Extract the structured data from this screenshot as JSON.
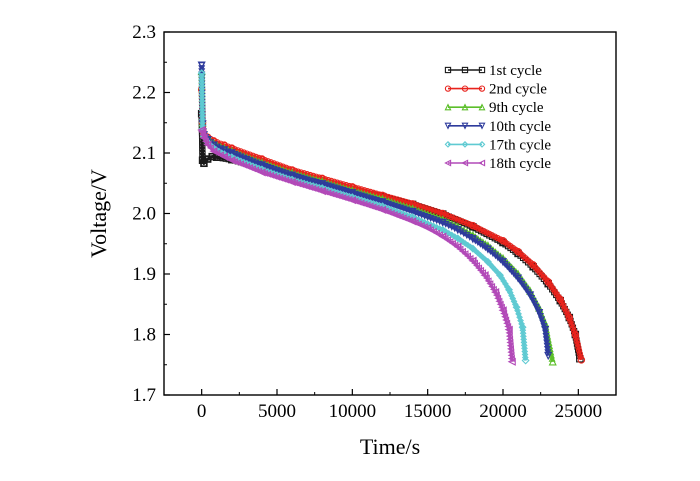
{
  "chart_data": {
    "type": "line",
    "xlabel": "Time/s",
    "ylabel": "Voltage/V",
    "xlim": [
      -2500,
      27500
    ],
    "ylim": [
      1.7,
      2.3
    ],
    "xticks": [
      0,
      5000,
      10000,
      15000,
      20000,
      25000
    ],
    "yticks": [
      1.7,
      1.8,
      1.9,
      2.0,
      2.1,
      2.2,
      2.3
    ],
    "xtick_labels": [
      "0",
      "5000",
      "10000",
      "15000",
      "20000",
      "25000"
    ],
    "ytick_labels": [
      "1.7",
      "1.8",
      "1.9",
      "2.0",
      "2.1",
      "2.2",
      "2.3"
    ],
    "legend_position": "top-right",
    "grid": false,
    "series": [
      {
        "name": "1st cycle",
        "color": "#1a1a1a",
        "marker": "square",
        "x": [
          0,
          60,
          150,
          400,
          700,
          1000,
          2000,
          4000,
          6000,
          8000,
          10000,
          12000,
          14000,
          16000,
          18000,
          20000,
          21000,
          22000,
          23000,
          23800,
          24400,
          24800,
          25100
        ],
        "y": [
          2.165,
          2.088,
          2.083,
          2.09,
          2.094,
          2.093,
          2.089,
          2.075,
          2.063,
          2.052,
          2.04,
          2.028,
          2.015,
          1.999,
          1.978,
          1.952,
          1.934,
          1.912,
          1.884,
          1.856,
          1.828,
          1.8,
          1.76
        ]
      },
      {
        "name": "2nd cycle",
        "color": "#e8231c",
        "marker": "circle",
        "x": [
          0,
          60,
          150,
          400,
          800,
          1500,
          2000,
          4000,
          6000,
          8000,
          10000,
          12000,
          14000,
          16000,
          18000,
          20000,
          21000,
          22000,
          23000,
          23800,
          24400,
          24800,
          25200
        ],
        "y": [
          2.205,
          2.15,
          2.132,
          2.126,
          2.12,
          2.113,
          2.108,
          2.09,
          2.072,
          2.058,
          2.044,
          2.03,
          2.016,
          2.0,
          1.98,
          1.955,
          1.937,
          1.915,
          1.887,
          1.858,
          1.828,
          1.8,
          1.758
        ]
      },
      {
        "name": "9th cycle",
        "color": "#5cbf2a",
        "marker": "triangle-up",
        "x": [
          0,
          60,
          150,
          400,
          800,
          1500,
          2000,
          4000,
          6000,
          8000,
          10000,
          12000,
          14000,
          16000,
          17000,
          18000,
          19000,
          20000,
          21000,
          21800,
          22400,
          22800,
          23300
        ],
        "y": [
          2.235,
          2.15,
          2.132,
          2.124,
          2.116,
          2.108,
          2.103,
          2.084,
          2.067,
          2.053,
          2.038,
          2.024,
          2.008,
          1.99,
          1.978,
          1.964,
          1.947,
          1.926,
          1.9,
          1.872,
          1.844,
          1.818,
          1.755
        ]
      },
      {
        "name": "10th cycle",
        "color": "#2e3b9c",
        "marker": "triangle-down",
        "x": [
          0,
          60,
          150,
          400,
          800,
          1500,
          2000,
          4000,
          6000,
          8000,
          10000,
          12000,
          14000,
          16000,
          17000,
          18000,
          19000,
          20000,
          21000,
          21800,
          22400,
          22800,
          23000
        ],
        "y": [
          2.245,
          2.148,
          2.13,
          2.122,
          2.113,
          2.105,
          2.1,
          2.08,
          2.063,
          2.049,
          2.034,
          2.019,
          2.003,
          1.985,
          1.973,
          1.958,
          1.941,
          1.92,
          1.893,
          1.865,
          1.836,
          1.808,
          1.765
        ]
      },
      {
        "name": "17th cycle",
        "color": "#5fcad2",
        "marker": "diamond",
        "x": [
          0,
          60,
          150,
          400,
          800,
          1500,
          2000,
          4000,
          6000,
          8000,
          10000,
          12000,
          14000,
          16000,
          17000,
          18000,
          19000,
          19800,
          20400,
          20900,
          21300,
          21500
        ],
        "y": [
          2.232,
          2.14,
          2.128,
          2.118,
          2.108,
          2.098,
          2.093,
          2.073,
          2.056,
          2.042,
          2.027,
          2.012,
          1.994,
          1.973,
          1.959,
          1.942,
          1.92,
          1.898,
          1.874,
          1.845,
          1.812,
          1.757
        ]
      },
      {
        "name": "18th cycle",
        "color": "#b24ab8",
        "marker": "triangle-left",
        "x": [
          0,
          60,
          150,
          400,
          800,
          1500,
          2000,
          4000,
          6000,
          8000,
          10000,
          12000,
          14000,
          15000,
          16000,
          17000,
          18000,
          18800,
          19500,
          20000,
          20400,
          20600
        ],
        "y": [
          2.138,
          2.135,
          2.125,
          2.114,
          2.103,
          2.094,
          2.088,
          2.068,
          2.052,
          2.037,
          2.022,
          2.006,
          1.987,
          1.976,
          1.962,
          1.945,
          1.922,
          1.898,
          1.87,
          1.84,
          1.808,
          1.755
        ]
      }
    ]
  }
}
